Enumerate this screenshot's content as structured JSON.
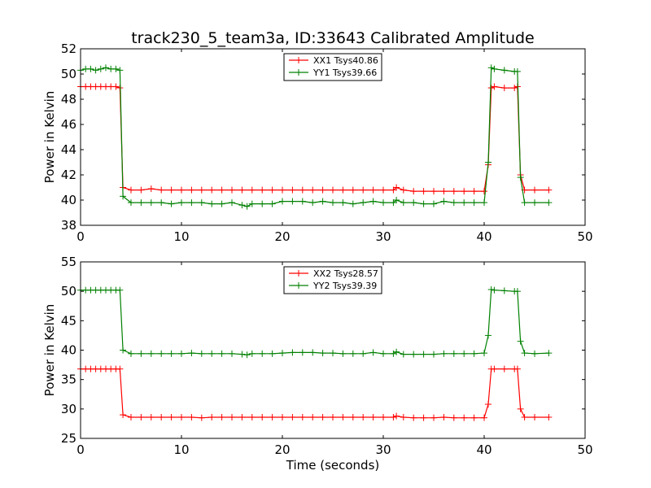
{
  "figure": {
    "title": "track230_5_team3a, ID:33643 Calibrated Amplitude",
    "xlabel": "Time (seconds)"
  },
  "chart_data": [
    {
      "type": "line",
      "title": "track230_5_team3a, ID:33643 Calibrated Amplitude",
      "xlabel": "",
      "ylabel": "Power in Kelvin",
      "xlim": [
        0,
        50
      ],
      "ylim": [
        38,
        52
      ],
      "xticks": [
        0,
        10,
        20,
        30,
        40,
        50
      ],
      "yticks": [
        38,
        40,
        42,
        44,
        46,
        48,
        50,
        52
      ],
      "grid": false,
      "legend_position": "top-center",
      "series": [
        {
          "name": "XX1 Tsys40.86",
          "color": "#ff0000",
          "marker": "+",
          "x": [
            0.0,
            0.5,
            1.0,
            1.5,
            2.0,
            2.5,
            3.0,
            3.5,
            3.9,
            4.2,
            5.0,
            6.0,
            7.0,
            8.0,
            9.0,
            10.0,
            11.0,
            12.0,
            13.0,
            14.0,
            15.0,
            16.0,
            17.0,
            18.0,
            19.0,
            20.0,
            21.0,
            22.0,
            23.0,
            24.0,
            25.0,
            26.0,
            27.0,
            28.0,
            29.0,
            30.0,
            31.0,
            31.3,
            32.0,
            33.0,
            34.0,
            35.0,
            36.0,
            37.0,
            38.0,
            39.0,
            40.0,
            40.4,
            40.7,
            41.0,
            42.0,
            43.0,
            43.3,
            43.6,
            44.0,
            45.0,
            46.4
          ],
          "y": [
            49.0,
            49.0,
            49.0,
            49.0,
            49.0,
            49.0,
            49.0,
            49.0,
            48.9,
            41.0,
            40.8,
            40.8,
            40.9,
            40.8,
            40.8,
            40.8,
            40.8,
            40.8,
            40.8,
            40.8,
            40.8,
            40.8,
            40.8,
            40.8,
            40.8,
            40.8,
            40.8,
            40.8,
            40.8,
            40.8,
            40.8,
            40.8,
            40.8,
            40.8,
            40.8,
            40.8,
            40.8,
            41.0,
            40.8,
            40.7,
            40.7,
            40.7,
            40.7,
            40.7,
            40.7,
            40.7,
            40.7,
            42.8,
            48.9,
            49.0,
            48.9,
            48.9,
            49.0,
            42.0,
            40.8,
            40.8,
            40.8
          ]
        },
        {
          "name": "YY1 Tsys39.66",
          "color": "#008000",
          "marker": "+",
          "x": [
            0.0,
            0.5,
            1.0,
            1.5,
            2.0,
            2.5,
            3.0,
            3.5,
            3.9,
            4.2,
            5.0,
            6.0,
            7.0,
            8.0,
            9.0,
            10.0,
            11.0,
            12.0,
            13.0,
            14.0,
            15.0,
            16.0,
            16.5,
            17.0,
            18.0,
            19.0,
            20.0,
            21.0,
            22.0,
            23.0,
            24.0,
            25.0,
            26.0,
            27.0,
            28.0,
            29.0,
            30.0,
            31.0,
            31.3,
            32.0,
            33.0,
            34.0,
            35.0,
            36.0,
            37.0,
            38.0,
            39.0,
            40.0,
            40.4,
            40.7,
            41.0,
            42.0,
            43.0,
            43.3,
            43.6,
            44.0,
            45.0,
            46.4
          ],
          "y": [
            50.3,
            50.4,
            50.4,
            50.3,
            50.4,
            50.5,
            50.4,
            50.4,
            50.3,
            40.3,
            39.8,
            39.8,
            39.8,
            39.8,
            39.7,
            39.8,
            39.8,
            39.8,
            39.7,
            39.7,
            39.8,
            39.6,
            39.5,
            39.7,
            39.7,
            39.7,
            39.9,
            39.9,
            39.9,
            39.8,
            39.9,
            39.8,
            39.8,
            39.7,
            39.8,
            39.9,
            39.8,
            39.8,
            40.0,
            39.8,
            39.8,
            39.7,
            39.7,
            39.9,
            39.8,
            39.8,
            39.8,
            39.8,
            43.0,
            50.5,
            50.4,
            50.3,
            50.2,
            50.2,
            41.8,
            39.8,
            39.8,
            39.8
          ]
        }
      ]
    },
    {
      "type": "line",
      "title": "",
      "xlabel": "Time (seconds)",
      "ylabel": "Power in Kelvin",
      "xlim": [
        0,
        50
      ],
      "ylim": [
        25,
        55
      ],
      "xticks": [
        0,
        10,
        20,
        30,
        40,
        50
      ],
      "yticks": [
        25,
        30,
        35,
        40,
        45,
        50,
        55
      ],
      "grid": false,
      "legend_position": "top-center",
      "series": [
        {
          "name": "XX2 Tsys28.57",
          "color": "#ff0000",
          "marker": "+",
          "x": [
            0.0,
            0.5,
            1.0,
            1.5,
            2.0,
            2.5,
            3.0,
            3.5,
            3.9,
            4.2,
            5.0,
            6.0,
            7.0,
            8.0,
            9.0,
            10.0,
            11.0,
            12.0,
            13.0,
            14.0,
            15.0,
            16.0,
            17.0,
            18.0,
            19.0,
            20.0,
            21.0,
            22.0,
            23.0,
            24.0,
            25.0,
            26.0,
            27.0,
            28.0,
            29.0,
            30.0,
            31.0,
            31.3,
            32.0,
            33.0,
            34.0,
            35.0,
            36.0,
            37.0,
            38.0,
            39.0,
            40.0,
            40.4,
            40.7,
            41.0,
            42.0,
            43.0,
            43.3,
            43.6,
            44.0,
            45.0,
            46.4
          ],
          "y": [
            36.8,
            36.8,
            36.8,
            36.8,
            36.8,
            36.8,
            36.8,
            36.8,
            36.8,
            29.0,
            28.6,
            28.6,
            28.6,
            28.6,
            28.6,
            28.6,
            28.6,
            28.5,
            28.6,
            28.6,
            28.6,
            28.6,
            28.6,
            28.6,
            28.6,
            28.6,
            28.6,
            28.6,
            28.6,
            28.6,
            28.6,
            28.6,
            28.6,
            28.6,
            28.6,
            28.6,
            28.6,
            28.8,
            28.6,
            28.5,
            28.5,
            28.5,
            28.6,
            28.5,
            28.5,
            28.5,
            28.5,
            30.8,
            36.8,
            36.8,
            36.8,
            36.8,
            36.8,
            30.0,
            28.6,
            28.6,
            28.6
          ]
        },
        {
          "name": "YY2 Tsys39.39",
          "color": "#008000",
          "marker": "+",
          "x": [
            0.0,
            0.5,
            1.0,
            1.5,
            2.0,
            2.5,
            3.0,
            3.5,
            3.9,
            4.2,
            5.0,
            6.0,
            7.0,
            8.0,
            9.0,
            10.0,
            11.0,
            12.0,
            13.0,
            14.0,
            15.0,
            16.0,
            16.5,
            17.0,
            18.0,
            19.0,
            20.0,
            21.0,
            22.0,
            23.0,
            24.0,
            25.0,
            26.0,
            27.0,
            28.0,
            29.0,
            30.0,
            31.0,
            31.3,
            32.0,
            33.0,
            34.0,
            35.0,
            36.0,
            37.0,
            38.0,
            39.0,
            40.0,
            40.4,
            40.7,
            41.0,
            42.0,
            43.0,
            43.3,
            43.6,
            44.0,
            45.0,
            46.4
          ],
          "y": [
            50.2,
            50.2,
            50.2,
            50.2,
            50.2,
            50.2,
            50.2,
            50.2,
            50.2,
            40.0,
            39.4,
            39.4,
            39.4,
            39.4,
            39.4,
            39.4,
            39.5,
            39.4,
            39.4,
            39.4,
            39.4,
            39.3,
            39.2,
            39.4,
            39.4,
            39.4,
            39.5,
            39.6,
            39.6,
            39.6,
            39.5,
            39.5,
            39.4,
            39.4,
            39.4,
            39.6,
            39.4,
            39.4,
            39.7,
            39.3,
            39.3,
            39.3,
            39.3,
            39.4,
            39.4,
            39.4,
            39.4,
            39.5,
            42.5,
            50.3,
            50.2,
            50.1,
            50.0,
            50.0,
            41.5,
            39.5,
            39.4,
            39.5
          ]
        }
      ]
    }
  ]
}
